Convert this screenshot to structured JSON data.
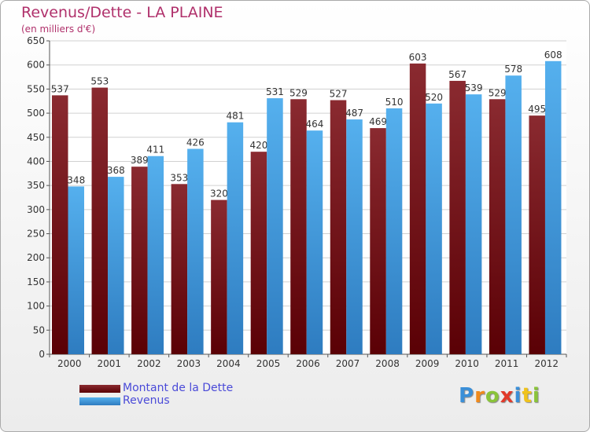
{
  "chart_data": {
    "type": "bar",
    "title": "Revenus/Dette - LA PLAINE",
    "subtitle": "(en milliers d'€)",
    "categories": [
      "2000",
      "2001",
      "2002",
      "2003",
      "2004",
      "2005",
      "2006",
      "2007",
      "2008",
      "2009",
      "2010",
      "2011",
      "2012"
    ],
    "series": [
      {
        "name": "Montant de la Dette",
        "color": "#7a1a1e",
        "values": [
          537,
          553,
          389,
          353,
          320,
          420,
          529,
          527,
          469,
          603,
          567,
          529,
          495
        ]
      },
      {
        "name": "Revenus",
        "color": "#4aa5e6",
        "values": [
          348,
          368,
          411,
          426,
          481,
          531,
          464,
          487,
          510,
          520,
          539,
          578,
          608
        ]
      }
    ],
    "ylim": [
      0,
      650
    ],
    "yticks": [
      0,
      50,
      100,
      150,
      200,
      250,
      300,
      350,
      400,
      450,
      500,
      550,
      600,
      650
    ],
    "grid": true,
    "legend": "bottom-left"
  },
  "logo": {
    "text": "Proxiti",
    "letters": [
      {
        "ch": "P",
        "color": "#3a8fd8"
      },
      {
        "ch": "r",
        "color": "#f08a1c"
      },
      {
        "ch": "o",
        "color": "#8ac43a"
      },
      {
        "ch": "x",
        "color": "#e23a2a"
      },
      {
        "ch": "i",
        "color": "#3a8fd8"
      },
      {
        "ch": "t",
        "color": "#f0c31c"
      },
      {
        "ch": "i",
        "color": "#8ac43a"
      }
    ]
  }
}
